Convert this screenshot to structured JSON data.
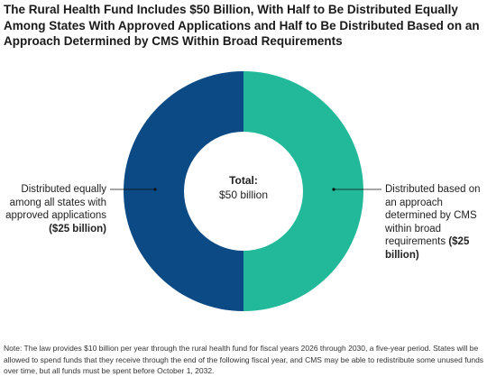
{
  "title": "The Rural Health Fund Includes $50 Billion, With Half to Be Distributed Equally Among States With Approved Applications and Half to Be Distributed Based on an Approach Determined by CMS Within Broad Requirements",
  "chart_data": {
    "type": "pie",
    "donut": true,
    "center_label": {
      "title": "Total:",
      "value": "$50 billion"
    },
    "slices": [
      {
        "label": "Distributed based on an approach determined by CMS within broad requirements",
        "value_label": "($25 billion)",
        "value": 25,
        "color": "#21b99a"
      },
      {
        "label": "Distributed equally among all states with approved applications",
        "value_label": "($25 billion)",
        "value": 25,
        "color": "#0b4a84"
      }
    ]
  },
  "annotations": {
    "left": {
      "text": "Distributed equally among all states with approved applications",
      "value": "($25 billion)"
    },
    "right": {
      "text": "Distributed based on an approach determined by CMS within broad requirements",
      "value": "($25 billion)"
    }
  },
  "note": "Note: The law provides $10 billion per year through the rural health fund for fiscal years 2026 through 2030, a five-year period. States will be allowed to spend funds that they receive through the end of the following fiscal year, and CMS may be able to redistribute some unused funds over time, but all funds must be spent before October 1, 2032."
}
